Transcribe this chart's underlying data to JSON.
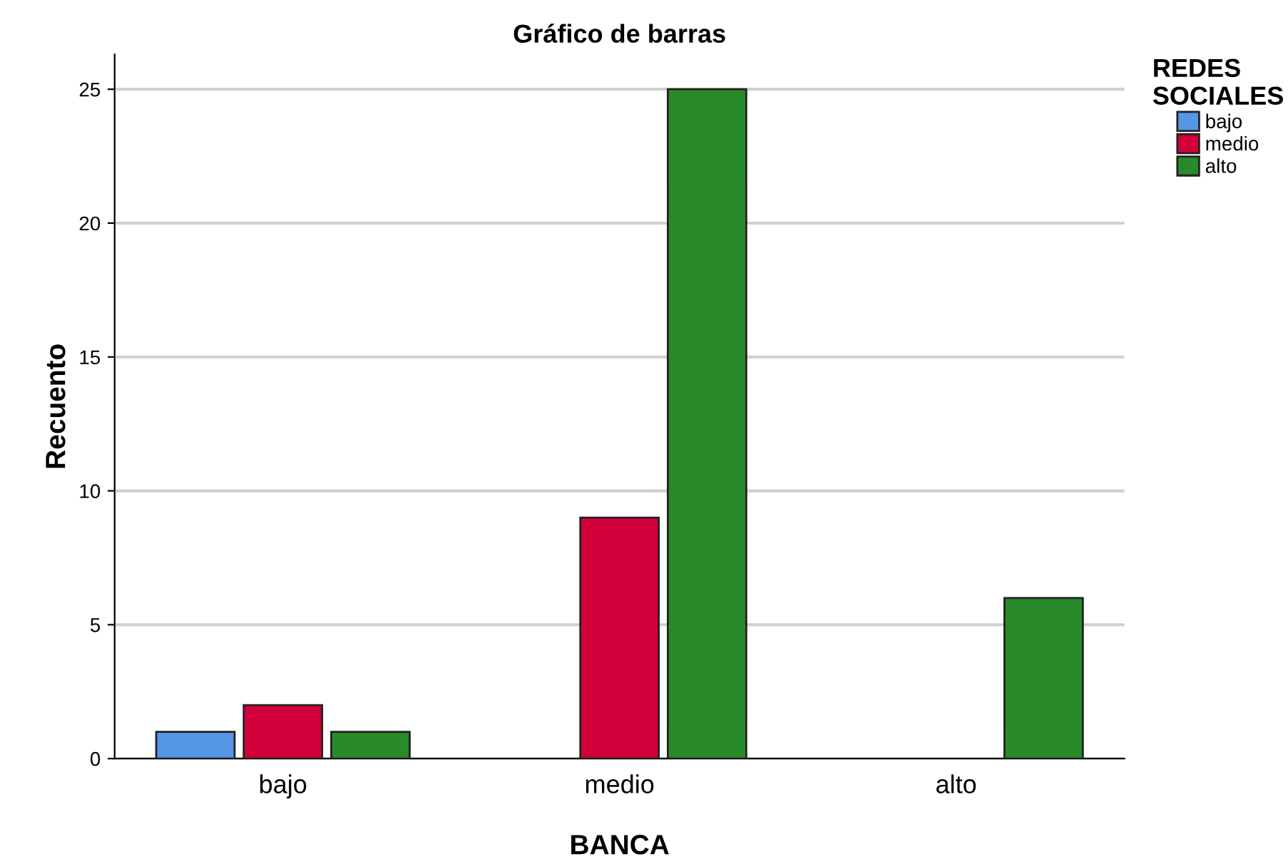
{
  "chart_data": {
    "type": "bar",
    "title": "Gráfico de barras",
    "xlabel": "BANCA",
    "ylabel": "Recuento",
    "legend_title": "REDES\nSOCIALES",
    "categories": [
      "bajo",
      "medio",
      "alto"
    ],
    "series": [
      {
        "name": "bajo",
        "color": "#5596e6",
        "values": [
          1,
          null,
          null
        ]
      },
      {
        "name": "medio",
        "color": "#d2003a",
        "values": [
          2,
          9,
          null
        ]
      },
      {
        "name": "alto",
        "color": "#298a2a",
        "values": [
          1,
          25,
          6
        ]
      }
    ],
    "ylim": [
      0,
      26.3
    ],
    "yticks": [
      0,
      5,
      10,
      15,
      20,
      25
    ],
    "grid": "y",
    "legend": "top right"
  }
}
